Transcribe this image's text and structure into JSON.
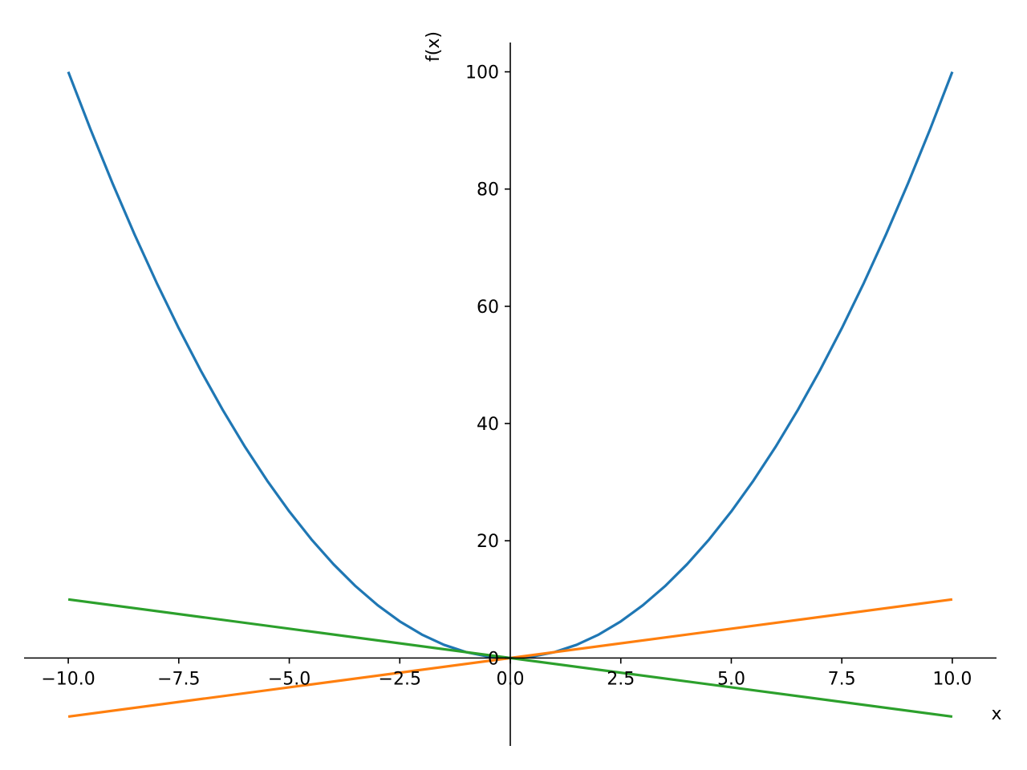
{
  "chart_data": {
    "type": "line",
    "title": "",
    "xlabel": "x",
    "ylabel": "f(x)",
    "xlim": [
      -11.0,
      11.0
    ],
    "ylim": [
      -15.0,
      105.0
    ],
    "grid": false,
    "legend": "none",
    "x_ticks": [
      {
        "value": -10.0,
        "label": "−10.0"
      },
      {
        "value": -7.5,
        "label": "−7.5"
      },
      {
        "value": -5.0,
        "label": "−5.0"
      },
      {
        "value": -2.5,
        "label": "−2.5"
      },
      {
        "value": 0.0,
        "label": "0.0"
      },
      {
        "value": 2.5,
        "label": "2.5"
      },
      {
        "value": 5.0,
        "label": "5.0"
      },
      {
        "value": 7.5,
        "label": "7.5"
      },
      {
        "value": 10.0,
        "label": "10.0"
      }
    ],
    "y_ticks": [
      {
        "value": 0,
        "label": "0"
      },
      {
        "value": 20,
        "label": "20"
      },
      {
        "value": 40,
        "label": "40"
      },
      {
        "value": 60,
        "label": "60"
      },
      {
        "value": 80,
        "label": "80"
      },
      {
        "value": 100,
        "label": "100"
      }
    ],
    "series": [
      {
        "color": "#1f77b4",
        "x": [
          -10,
          -9.5,
          -9,
          -8.5,
          -8,
          -7.5,
          -7,
          -6.5,
          -6,
          -5.5,
          -5,
          -4.5,
          -4,
          -3.5,
          -3,
          -2.5,
          -2,
          -1.5,
          -1,
          -0.5,
          0,
          0.5,
          1,
          1.5,
          2,
          2.5,
          3,
          3.5,
          4,
          4.5,
          5,
          5.5,
          6,
          6.5,
          7,
          7.5,
          8,
          8.5,
          9,
          9.5,
          10
        ],
        "y": [
          100,
          90.25,
          81,
          72.25,
          64,
          56.25,
          49,
          42.25,
          36,
          30.25,
          25,
          20.25,
          16,
          12.25,
          9,
          6.25,
          4,
          2.25,
          1,
          0.25,
          0,
          0.25,
          1,
          2.25,
          4,
          6.25,
          9,
          12.25,
          16,
          20.25,
          25,
          30.25,
          36,
          42.25,
          49,
          56.25,
          64,
          72.25,
          81,
          90.25,
          100
        ]
      },
      {
        "color": "#ff7f0e",
        "x": [
          -10,
          10
        ],
        "y": [
          -10,
          10
        ]
      },
      {
        "color": "#2ca02c",
        "x": [
          -10,
          10
        ],
        "y": [
          10,
          -10
        ]
      }
    ]
  }
}
